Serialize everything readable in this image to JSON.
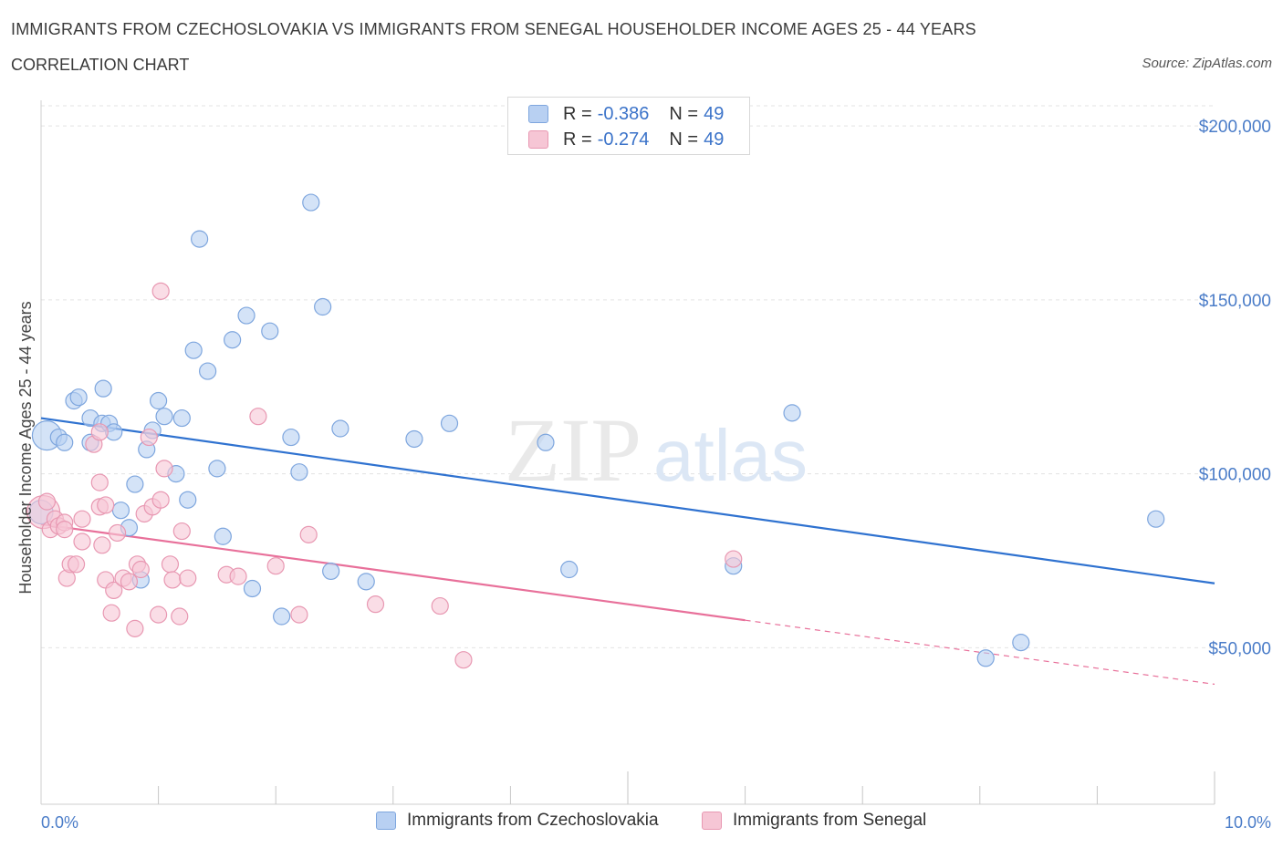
{
  "header": {
    "title": "IMMIGRANTS FROM CZECHOSLOVAKIA VS IMMIGRANTS FROM SENEGAL HOUSEHOLDER INCOME AGES 25 - 44 YEARS",
    "subtitle": "CORRELATION CHART",
    "source": "Source: ZipAtlas.com"
  },
  "watermark": {
    "zip": "ZIP",
    "atlas": "atlas"
  },
  "legend": {
    "r_label": "R =",
    "n_label": "N =",
    "rows": [
      {
        "r": "-0.386",
        "n": "49"
      },
      {
        "r": "-0.274",
        "n": "49"
      }
    ]
  },
  "colors": {
    "blue_fill": "#b8d0f2",
    "blue_stroke": "#7ea6de",
    "blue_line": "#2f72d0",
    "pink_fill": "#f6c6d5",
    "pink_stroke": "#e898b2",
    "pink_line": "#e8709a",
    "grid": "#e3e3e3",
    "tick_text": "#4a7cc8"
  },
  "chart_data": {
    "type": "scatter",
    "xlabel": "",
    "ylabel": "Householder Income Ages 25 - 44 years",
    "x_tick_labels": [
      "0.0%",
      "10.0%"
    ],
    "xlim": [
      0,
      10
    ],
    "ylim": [
      5000,
      210000
    ],
    "y_ticks": [
      {
        "value": 50000,
        "label": "$50,000"
      },
      {
        "value": 100000,
        "label": "$100,000"
      },
      {
        "value": 150000,
        "label": "$150,000"
      },
      {
        "value": 200000,
        "label": "$200,000"
      }
    ],
    "grid": true,
    "legend_position": "top-center",
    "series": [
      {
        "name": "Immigrants from Czechoslovakia",
        "color": "#b8d0f2",
        "trend": {
          "x0": 0,
          "y0": 116000,
          "x1": 10,
          "y1": 68500,
          "dashed_from": null
        },
        "points": [
          [
            0.05,
            111000,
            16
          ],
          [
            0.15,
            110500,
            9
          ],
          [
            0.2,
            109000,
            9
          ],
          [
            0.28,
            121000,
            9
          ],
          [
            0.32,
            122000,
            9
          ],
          [
            0.42,
            109000,
            9
          ],
          [
            0.42,
            116000,
            9
          ],
          [
            0.52,
            114500,
            9
          ],
          [
            0.53,
            124500,
            9
          ],
          [
            0.58,
            114500,
            9
          ],
          [
            0.62,
            112000,
            9
          ],
          [
            0.68,
            89500,
            9
          ],
          [
            0.75,
            84500,
            9
          ],
          [
            0.8,
            97000,
            9
          ],
          [
            0.85,
            69500,
            9
          ],
          [
            0.9,
            107000,
            9
          ],
          [
            0.95,
            112500,
            9
          ],
          [
            1.0,
            121000,
            9
          ],
          [
            1.05,
            116500,
            9
          ],
          [
            1.15,
            100000,
            9
          ],
          [
            1.2,
            116000,
            9
          ],
          [
            1.25,
            92500,
            9
          ],
          [
            1.3,
            135500,
            9
          ],
          [
            1.35,
            167500,
            9
          ],
          [
            1.42,
            129500,
            9
          ],
          [
            1.5,
            101500,
            9
          ],
          [
            1.55,
            82000,
            9
          ],
          [
            1.63,
            138500,
            9
          ],
          [
            1.75,
            145500,
            9
          ],
          [
            1.8,
            67000,
            9
          ],
          [
            1.95,
            141000,
            9
          ],
          [
            2.05,
            59000,
            9
          ],
          [
            2.13,
            110500,
            9
          ],
          [
            2.2,
            100500,
            9
          ],
          [
            2.3,
            178000,
            9
          ],
          [
            2.4,
            148000,
            9
          ],
          [
            2.47,
            72000,
            9
          ],
          [
            2.55,
            113000,
            9
          ],
          [
            2.77,
            69000,
            9
          ],
          [
            3.18,
            110000,
            9
          ],
          [
            3.48,
            114500,
            9
          ],
          [
            4.3,
            109000,
            9
          ],
          [
            4.5,
            72500,
            9
          ],
          [
            5.9,
            73500,
            9
          ],
          [
            6.4,
            117500,
            9
          ],
          [
            8.05,
            47000,
            9
          ],
          [
            8.35,
            51500,
            9
          ],
          [
            9.5,
            87000,
            9
          ],
          [
            0.0,
            89000,
            13
          ]
        ]
      },
      {
        "name": "Immigrants from Senegal",
        "color": "#f6c6d5",
        "trend": {
          "x0": 0,
          "y0": 85500,
          "x1": 10,
          "y1": 39500,
          "dashed_from": 6.0
        },
        "points": [
          [
            0.02,
            89000,
            18
          ],
          [
            0.05,
            92000,
            9
          ],
          [
            0.08,
            84000,
            9
          ],
          [
            0.12,
            87000,
            9
          ],
          [
            0.15,
            85000,
            9
          ],
          [
            0.2,
            86000,
            9
          ],
          [
            0.22,
            70000,
            9
          ],
          [
            0.25,
            74000,
            9
          ],
          [
            0.3,
            74000,
            9
          ],
          [
            0.35,
            87000,
            9
          ],
          [
            0.35,
            80500,
            9
          ],
          [
            0.45,
            108500,
            9
          ],
          [
            0.5,
            90500,
            9
          ],
          [
            0.52,
            79500,
            9
          ],
          [
            0.55,
            91000,
            9
          ],
          [
            0.5,
            112000,
            9
          ],
          [
            0.5,
            97500,
            9
          ],
          [
            0.55,
            69500,
            9
          ],
          [
            0.6,
            60000,
            9
          ],
          [
            0.62,
            66500,
            9
          ],
          [
            0.65,
            83000,
            9
          ],
          [
            0.7,
            70000,
            9
          ],
          [
            0.75,
            69000,
            9
          ],
          [
            0.8,
            55500,
            9
          ],
          [
            0.82,
            74000,
            9
          ],
          [
            0.85,
            72500,
            9
          ],
          [
            0.88,
            88500,
            9
          ],
          [
            0.92,
            110500,
            9
          ],
          [
            0.95,
            90500,
            9
          ],
          [
            1.0,
            59500,
            9
          ],
          [
            1.02,
            92500,
            9
          ],
          [
            1.05,
            101500,
            9
          ],
          [
            1.02,
            152500,
            9
          ],
          [
            1.1,
            74000,
            9
          ],
          [
            1.12,
            69500,
            9
          ],
          [
            1.18,
            59000,
            9
          ],
          [
            1.2,
            83500,
            9
          ],
          [
            1.25,
            70000,
            9
          ],
          [
            1.58,
            71000,
            9
          ],
          [
            1.68,
            70500,
            9
          ],
          [
            1.85,
            116500,
            9
          ],
          [
            2.0,
            73500,
            9
          ],
          [
            2.2,
            59500,
            9
          ],
          [
            2.28,
            82500,
            9
          ],
          [
            2.85,
            62500,
            9
          ],
          [
            3.4,
            62000,
            9
          ],
          [
            3.6,
            46500,
            9
          ],
          [
            5.9,
            75500,
            9
          ],
          [
            0.2,
            84000,
            9
          ]
        ]
      }
    ]
  }
}
